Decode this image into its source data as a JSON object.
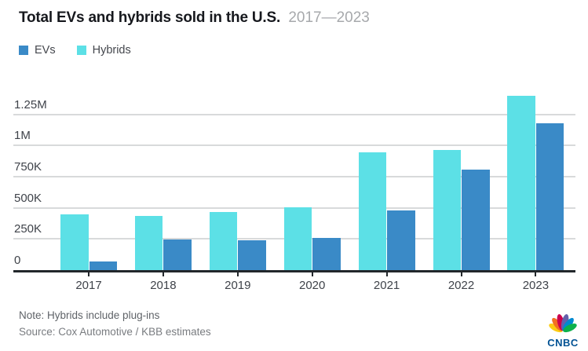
{
  "header": {
    "title": "Total EVs and hybrids sold in the U.S.",
    "subtitle": "2017—2023"
  },
  "legend": {
    "items": [
      {
        "label": "EVs",
        "color": "#3a8ac7"
      },
      {
        "label": "Hybrids",
        "color": "#5ce0e6"
      }
    ]
  },
  "chart_data": {
    "type": "bar",
    "title": "Total EVs and hybrids sold in the U.S.",
    "subtitle": "2017—2023",
    "categories": [
      "2017",
      "2018",
      "2019",
      "2020",
      "2021",
      "2022",
      "2023"
    ],
    "series": [
      {
        "name": "EVs",
        "color": "#3a8ac7",
        "values": [
          70000,
          245000,
          240000,
          260000,
          480000,
          805000,
          1180000
        ]
      },
      {
        "name": "Hybrids",
        "color": "#5ce0e6",
        "values": [
          445000,
          435000,
          465000,
          505000,
          945000,
          965000,
          1395000
        ]
      }
    ],
    "bar_order_left_to_right": [
      "Hybrids",
      "EVs"
    ],
    "ylim": [
      0,
      1480000
    ],
    "yticks": [
      {
        "value": 0,
        "label": "0"
      },
      {
        "value": 250000,
        "label": "250K"
      },
      {
        "value": 500000,
        "label": "500K"
      },
      {
        "value": 750000,
        "label": "750K"
      },
      {
        "value": 1000000,
        "label": "1M"
      },
      {
        "value": 1250000,
        "label": "1.25M"
      }
    ],
    "grid": true,
    "legend_position": "top-left"
  },
  "footer": {
    "note": "Note: Hybrids include plug-ins",
    "source": "Source: Cox Automotive / KBB estimates"
  },
  "logo": {
    "text": "CNBC",
    "wordmark_color": "#005193",
    "peacock_colors": [
      "#fccc12",
      "#f37021",
      "#cc004c",
      "#6460aa",
      "#0089d0",
      "#0db14b"
    ]
  }
}
